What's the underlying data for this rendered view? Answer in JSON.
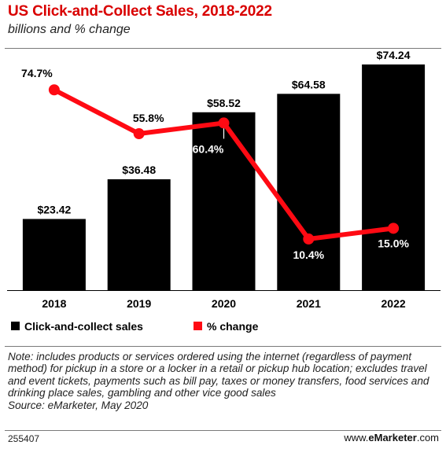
{
  "chart_data": {
    "type": "bar",
    "title": "US Click-and-Collect Sales, 2018-2022",
    "subtitle": "billions and % change",
    "categories": [
      "2018",
      "2019",
      "2020",
      "2021",
      "2022"
    ],
    "series": [
      {
        "name": "Click-and-collect sales",
        "type": "bar",
        "color": "#000000",
        "values": [
          23.42,
          36.48,
          58.52,
          64.58,
          74.24
        ],
        "labels": [
          "$23.42",
          "$36.48",
          "$58.52",
          "$64.58",
          "$74.24"
        ]
      },
      {
        "name": "% change",
        "type": "line",
        "color": "#ff0a13",
        "values": [
          74.7,
          55.8,
          60.4,
          10.4,
          15.0
        ],
        "labels": [
          "74.7%",
          "55.8%",
          "60.4%",
          "10.4%",
          "15.0%"
        ]
      }
    ],
    "legend_position": "bottom-left",
    "grid": false
  },
  "note": "Note: includes products or services ordered using the internet (regardless of payment method) for pickup in a store or a locker in a retail or pickup hub location; excludes travel and event tickets, payments such as bill pay, taxes or money transfers, food services and drinking place sales, gambling and other vice good sales",
  "source": "Source: eMarketer, May 2020",
  "chart_id": "255407",
  "brand": {
    "prefix": "www.",
    "name": "eMarketer",
    "suffix": ".com"
  }
}
